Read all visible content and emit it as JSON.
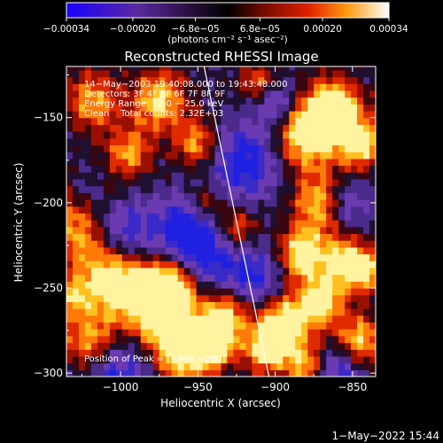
{
  "chart_data": {
    "type": "heatmap",
    "title": "Reconstructed RHESSI Image",
    "xlabel": "Heliocentric X (arcsec)",
    "ylabel": "Heliocentric Y (arcsec)",
    "xlim": [
      -1035,
      -835
    ],
    "ylim": [
      -302,
      -120
    ],
    "x_ticks": [
      -1000,
      -950,
      -900,
      -850
    ],
    "x_tick_labels": [
      "−1000",
      "−950",
      "−900",
      "−850"
    ],
    "y_ticks": [
      -150,
      -200,
      -250,
      -300
    ],
    "y_tick_labels": [
      "−150",
      "−200",
      "−250",
      "−300"
    ],
    "colorbar": {
      "range": [
        -0.00034,
        0.00034
      ],
      "ticks": [
        -0.00034,
        -0.0002,
        -6.8e-05,
        6.8e-05,
        0.0002,
        0.00034
      ],
      "tick_labels": [
        "−0.00034",
        "−0.00020",
        "−6.8e−05",
        "6.8e−05",
        "0.00020",
        "0.00034"
      ],
      "unit_label": "(photons cm⁻² s⁻¹ asec⁻²)"
    },
    "info_lines": [
      "14−May−2003 19:40:08.000 to 19:43:48.000",
      "Detectors: 3F 4F 5F 6F 7F 8F 9F",
      "Energy Range: 12.0 − 25.0 keV",
      "Clean    Total counts: 2.32E+03"
    ],
    "peak_label": "Position of Peak = [−948,−280]",
    "limb_line": [
      [
        -946,
        -120
      ],
      [
        -904,
        -302
      ]
    ],
    "grid": false
  },
  "footer_timestamp": "1−May−2022 15:44"
}
